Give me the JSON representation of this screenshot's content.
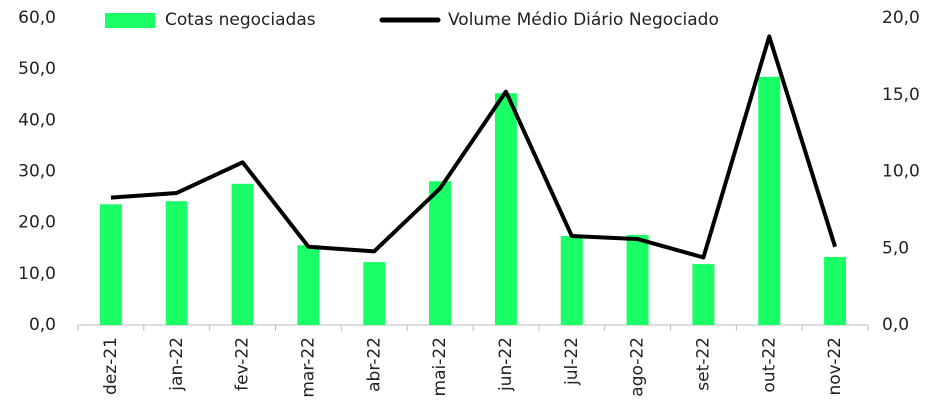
{
  "chart_data": {
    "type": "bar",
    "categories": [
      "dez-21",
      "jan-22",
      "fev-22",
      "mar-22",
      "abr-22",
      "mai-22",
      "jun-22",
      "jul-22",
      "ago-22",
      "set-22",
      "out-22",
      "nov-22"
    ],
    "series": [
      {
        "name": "Cotas negociadas",
        "type": "bar",
        "color": "#1aff66",
        "values": [
          23.6,
          24.2,
          27.6,
          15.6,
          12.3,
          28.1,
          45.3,
          17.4,
          17.6,
          11.9,
          48.5,
          13.3
        ]
      },
      {
        "name": "Volume Médio Diário Negociado",
        "type": "line",
        "axis": "y2",
        "color": "#000000",
        "values": [
          8.3,
          8.6,
          10.6,
          5.1,
          4.8,
          8.9,
          15.2,
          5.8,
          5.6,
          4.4,
          18.8,
          5.1
        ]
      }
    ],
    "ylim": [
      0,
      60
    ],
    "yticks": [
      {
        "value": 0,
        "label": "0,0"
      },
      {
        "value": 10,
        "label": "10,0"
      },
      {
        "value": 20,
        "label": "20,0"
      },
      {
        "value": 30,
        "label": "30,0"
      },
      {
        "value": 40,
        "label": "40,0"
      },
      {
        "value": 50,
        "label": "50,0"
      },
      {
        "value": 60,
        "label": "60,0"
      }
    ],
    "y2lim": [
      0,
      20
    ],
    "y2ticks": [
      {
        "value": 0,
        "label": "0,0"
      },
      {
        "value": 5,
        "label": "5,0"
      },
      {
        "value": 10,
        "label": "10,0"
      },
      {
        "value": 15,
        "label": "15,0"
      },
      {
        "value": 20,
        "label": "20,0"
      }
    ],
    "legend": "top"
  }
}
